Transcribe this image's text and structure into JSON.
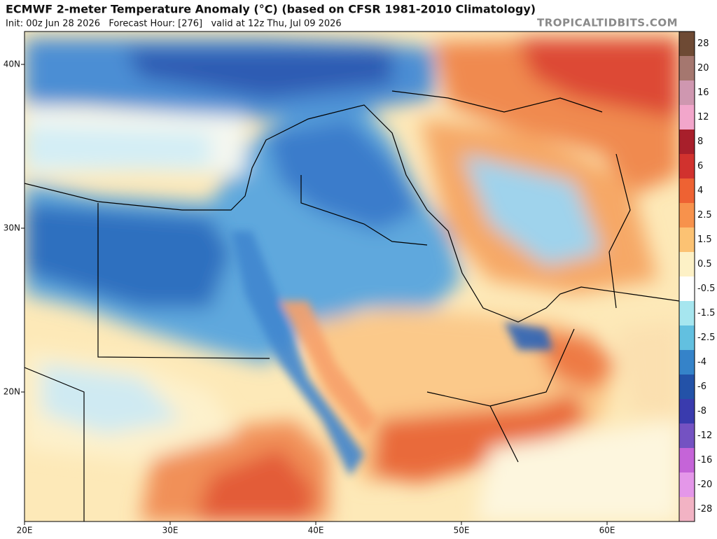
{
  "header": {
    "title": "ECMWF 2-meter Temperature Anomaly (°C) (based on CFSR 1981-2010 Climatology)",
    "subtitle": "Init: 00z Jun 28 2026   Forecast Hour: [276]   valid at 12z Thu, Jul 09 2026",
    "watermark": "TROPICALTIDBITS.COM"
  },
  "map": {
    "lat_labels": [
      "40N",
      "30N",
      "20N"
    ],
    "lon_labels": [
      "20E",
      "30E",
      "40E",
      "50E",
      "60E"
    ]
  },
  "colorbar": {
    "levels": [
      28,
      20,
      16,
      12,
      8,
      6,
      4,
      2.5,
      1.5,
      0.5,
      -0.5,
      -1.5,
      -2.5,
      -4,
      -6,
      -8,
      -12,
      -16,
      -20,
      -28
    ],
    "colors": [
      "#6e4a34",
      "#a5776f",
      "#cf97b0",
      "#f2a6cb",
      "#a81f2b",
      "#d1322e",
      "#ee6233",
      "#f7924c",
      "#fcc273",
      "#fdf1c6",
      "#ffffff",
      "#a6e6ef",
      "#62c0e0",
      "#3583c9",
      "#2352a8",
      "#3a3bae",
      "#7452c2",
      "#c564d8",
      "#e497e9",
      "#f2b3c4"
    ]
  }
}
